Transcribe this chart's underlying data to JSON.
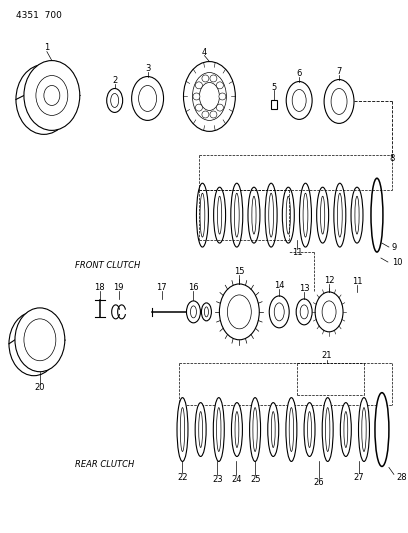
{
  "header_text": "4351  700",
  "background_color": "#ffffff",
  "line_color": "#000000",
  "front_clutch_label": "FRONT CLUTCH",
  "rear_clutch_label": "REAR CLUTCH",
  "fig_width": 4.08,
  "fig_height": 5.33,
  "dpi": 100
}
